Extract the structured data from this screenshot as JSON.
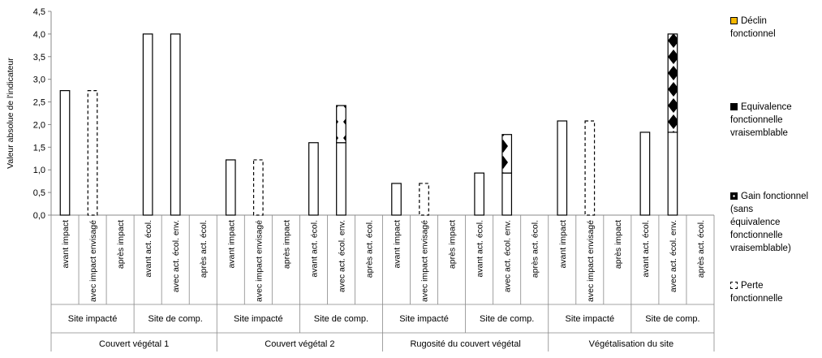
{
  "chart_data": {
    "type": "bar",
    "ylabel": "Valeur absolue de l'indicateur",
    "ylim": [
      0,
      4.5
    ],
    "yticks": [
      "0,0",
      "0,5",
      "1,0",
      "1,5",
      "2,0",
      "2,5",
      "3,0",
      "3,5",
      "4,0",
      "4,5"
    ],
    "groups": [
      {
        "name": "Couvert végétal 1",
        "sites": [
          {
            "name": "Site impacté",
            "bars": [
              {
                "label": "avant impact",
                "value": 2.75,
                "style": "solid"
              },
              {
                "label": "avec impact envisagé",
                "value": 2.75,
                "style": "dashed"
              },
              {
                "label": "après impact",
                "value": 0,
                "style": "solid"
              }
            ]
          },
          {
            "name": "Site de comp.",
            "bars": [
              {
                "label": "avant act. écol.",
                "value": 4.0,
                "style": "solid"
              },
              {
                "label": "avec act. écol. env.",
                "value": 4.0,
                "style": "solid"
              },
              {
                "label": "après act. écol.",
                "value": 0,
                "style": "solid"
              }
            ]
          }
        ]
      },
      {
        "name": "Couvert végétal 2",
        "sites": [
          {
            "name": "Site impacté",
            "bars": [
              {
                "label": "avant impact",
                "value": 1.22,
                "style": "solid"
              },
              {
                "label": "avec impact envisagé",
                "value": 1.22,
                "style": "dashed"
              },
              {
                "label": "après impact",
                "value": 0,
                "style": "solid"
              }
            ]
          },
          {
            "name": "Site de comp.",
            "bars": [
              {
                "label": "avant act. écol.",
                "value": 1.6,
                "style": "solid"
              },
              {
                "label": "avec act. écol. env.",
                "value": 1.6,
                "gain": 0.82,
                "gain_pattern": "black-diamonds",
                "style": "solid"
              },
              {
                "label": "après act. écol.",
                "value": 0,
                "style": "solid"
              }
            ]
          }
        ]
      },
      {
        "name": "Rugosité du couvert végétal",
        "sites": [
          {
            "name": "Site impacté",
            "bars": [
              {
                "label": "avant impact",
                "value": 0.7,
                "style": "solid"
              },
              {
                "label": "avec impact envisagé",
                "value": 0.7,
                "style": "dashed"
              },
              {
                "label": "après impact",
                "value": 0,
                "style": "solid"
              }
            ]
          },
          {
            "name": "Site de comp.",
            "bars": [
              {
                "label": "avant act. écol.",
                "value": 0.93,
                "style": "solid"
              },
              {
                "label": "avec act. écol. env.",
                "value": 0.93,
                "gain": 0.85,
                "gain_pattern": "white-diamonds",
                "style": "solid"
              },
              {
                "label": "après act. écol.",
                "value": 0,
                "style": "solid"
              }
            ]
          }
        ]
      },
      {
        "name": "Végétalisation du site",
        "sites": [
          {
            "name": "Site impacté",
            "bars": [
              {
                "label": "avant impact",
                "value": 2.08,
                "style": "solid"
              },
              {
                "label": "avec impact envisagé",
                "value": 2.08,
                "style": "dashed"
              },
              {
                "label": "après impact",
                "value": 0,
                "style": "solid"
              }
            ]
          },
          {
            "name": "Site de comp.",
            "bars": [
              {
                "label": "avant act. écol.",
                "value": 1.83,
                "style": "solid"
              },
              {
                "label": "avec act. écol. env.",
                "value": 1.83,
                "gain": 2.17,
                "gain_pattern": "black-diamonds",
                "style": "solid"
              },
              {
                "label": "après act. écol.",
                "value": 0,
                "style": "solid"
              }
            ]
          }
        ]
      }
    ],
    "legend": {
      "placement": "right",
      "entries": [
        {
          "label": "Déclin\nfonctionnel",
          "color": "#f5b800",
          "key": "filled"
        },
        {
          "label": "Equivalence\nfonctionnelle\nvraisemblable",
          "color": "#000000",
          "key": "filled"
        },
        {
          "label": "Gain fonctionnel\n(sans\néquivalence\nfonctionnelle\nvraisemblable)",
          "color": "#000000",
          "key": "diamond"
        },
        {
          "label": "Perte\nfonctionnelle",
          "color": "#000000",
          "key": "dashed"
        }
      ]
    },
    "grid": false
  }
}
